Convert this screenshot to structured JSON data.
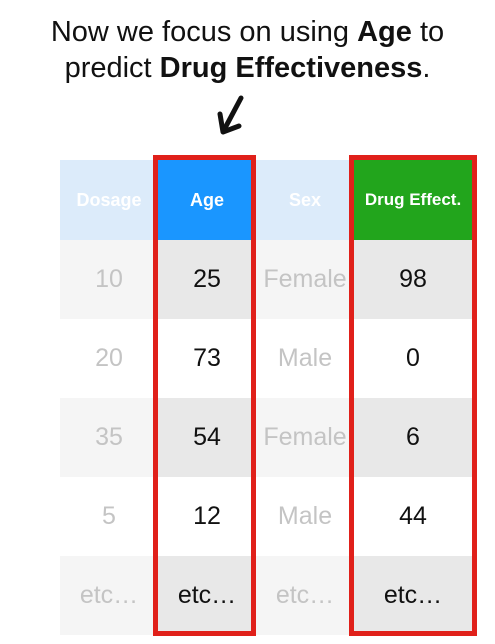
{
  "caption": {
    "line1_prefix": "Now we focus on using ",
    "line1_bold": "Age",
    "line1_suffix": " to",
    "line2_prefix": "predict ",
    "line2_bold": "Drug Effectiveness",
    "line2_suffix": "."
  },
  "icons": {
    "arrow": "arrow-down-left-icon"
  },
  "colors": {
    "highlight_frame": "#e0201a",
    "age_header": "#1a96ff",
    "drug_header": "#22a51c",
    "faded_header": "#dcebfa"
  },
  "table": {
    "headers": {
      "dosage": "Dosage",
      "age": "Age",
      "sex": "Sex",
      "drug": "Drug Effect."
    },
    "dosage": [
      "10",
      "20",
      "35",
      "5",
      "etc…"
    ],
    "age": [
      "25",
      "73",
      "54",
      "12",
      "etc…"
    ],
    "sex": [
      "Female",
      "Male",
      "Female",
      "Male",
      "etc…"
    ],
    "drug": [
      "98",
      "0",
      "6",
      "44",
      "etc…"
    ]
  }
}
